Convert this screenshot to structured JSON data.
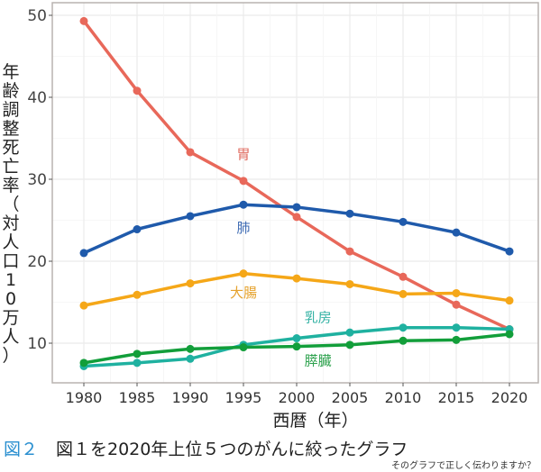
{
  "chart_data": {
    "type": "line",
    "title": "",
    "xlabel": "西暦（年）",
    "ylabel": "年齢調整死亡率（対人口10万人）",
    "x": [
      1980,
      1985,
      1990,
      1995,
      2000,
      2005,
      2010,
      2015,
      2020
    ],
    "xticks": [
      "1980",
      "1985",
      "1990",
      "1995",
      "2000",
      "2005",
      "2010",
      "2015",
      "2020"
    ],
    "yticks": [
      "10",
      "20",
      "30",
      "40",
      "50"
    ],
    "yticks_values": [
      10,
      20,
      30,
      40,
      50
    ],
    "xlim": [
      1977,
      2023
    ],
    "ylim": [
      5.2,
      51.7
    ],
    "grid": true,
    "legend": "inline-labels",
    "series": [
      {
        "name": "胃",
        "color": "#e8685a",
        "values": [
          49.3,
          40.8,
          33.3,
          29.8,
          25.4,
          21.2,
          18.1,
          14.7,
          11.7
        ]
      },
      {
        "name": "肺",
        "color": "#1f5aab",
        "values": [
          21.0,
          23.9,
          25.5,
          26.9,
          26.6,
          25.8,
          24.8,
          23.5,
          21.2
        ]
      },
      {
        "name": "大腸",
        "color": "#f5a718",
        "values": [
          14.6,
          15.9,
          17.3,
          18.5,
          17.9,
          17.2,
          16.0,
          16.1,
          15.2
        ]
      },
      {
        "name": "乳房",
        "color": "#1fb1a0",
        "values": [
          7.2,
          7.6,
          8.1,
          9.8,
          10.6,
          11.3,
          11.9,
          11.9,
          11.7
        ]
      },
      {
        "name": "膵臓",
        "color": "#129e3a",
        "values": [
          7.6,
          8.7,
          9.3,
          9.5,
          9.6,
          9.8,
          10.3,
          10.4,
          11.1
        ]
      }
    ],
    "series_labels": [
      {
        "text": "胃",
        "color": "#e06c60",
        "x": 1995,
        "y": 32.5
      },
      {
        "text": "肺",
        "color": "#3e6bb3",
        "x": 1995,
        "y": 23.5
      },
      {
        "text": "大腸",
        "color": "#e5a22d",
        "x": 1995,
        "y": 15.6
      },
      {
        "text": "乳房",
        "color": "#34b2a4",
        "x": 2002,
        "y": 12.6
      },
      {
        "text": "膵臓",
        "color": "#2ea24e",
        "x": 2002,
        "y": 7.3
      }
    ]
  },
  "figure": {
    "number": "図２",
    "caption": "図１を2020年上位５つのがんに絞ったグラフ",
    "note": "そのグラフで正しく伝わりますか？"
  },
  "ylabel_chars": [
    "年",
    "齢",
    "調",
    "整",
    "死",
    "亡",
    "率",
    "（",
    "対",
    "人",
    "口",
    "1",
    "0",
    "万",
    "人",
    "）"
  ]
}
